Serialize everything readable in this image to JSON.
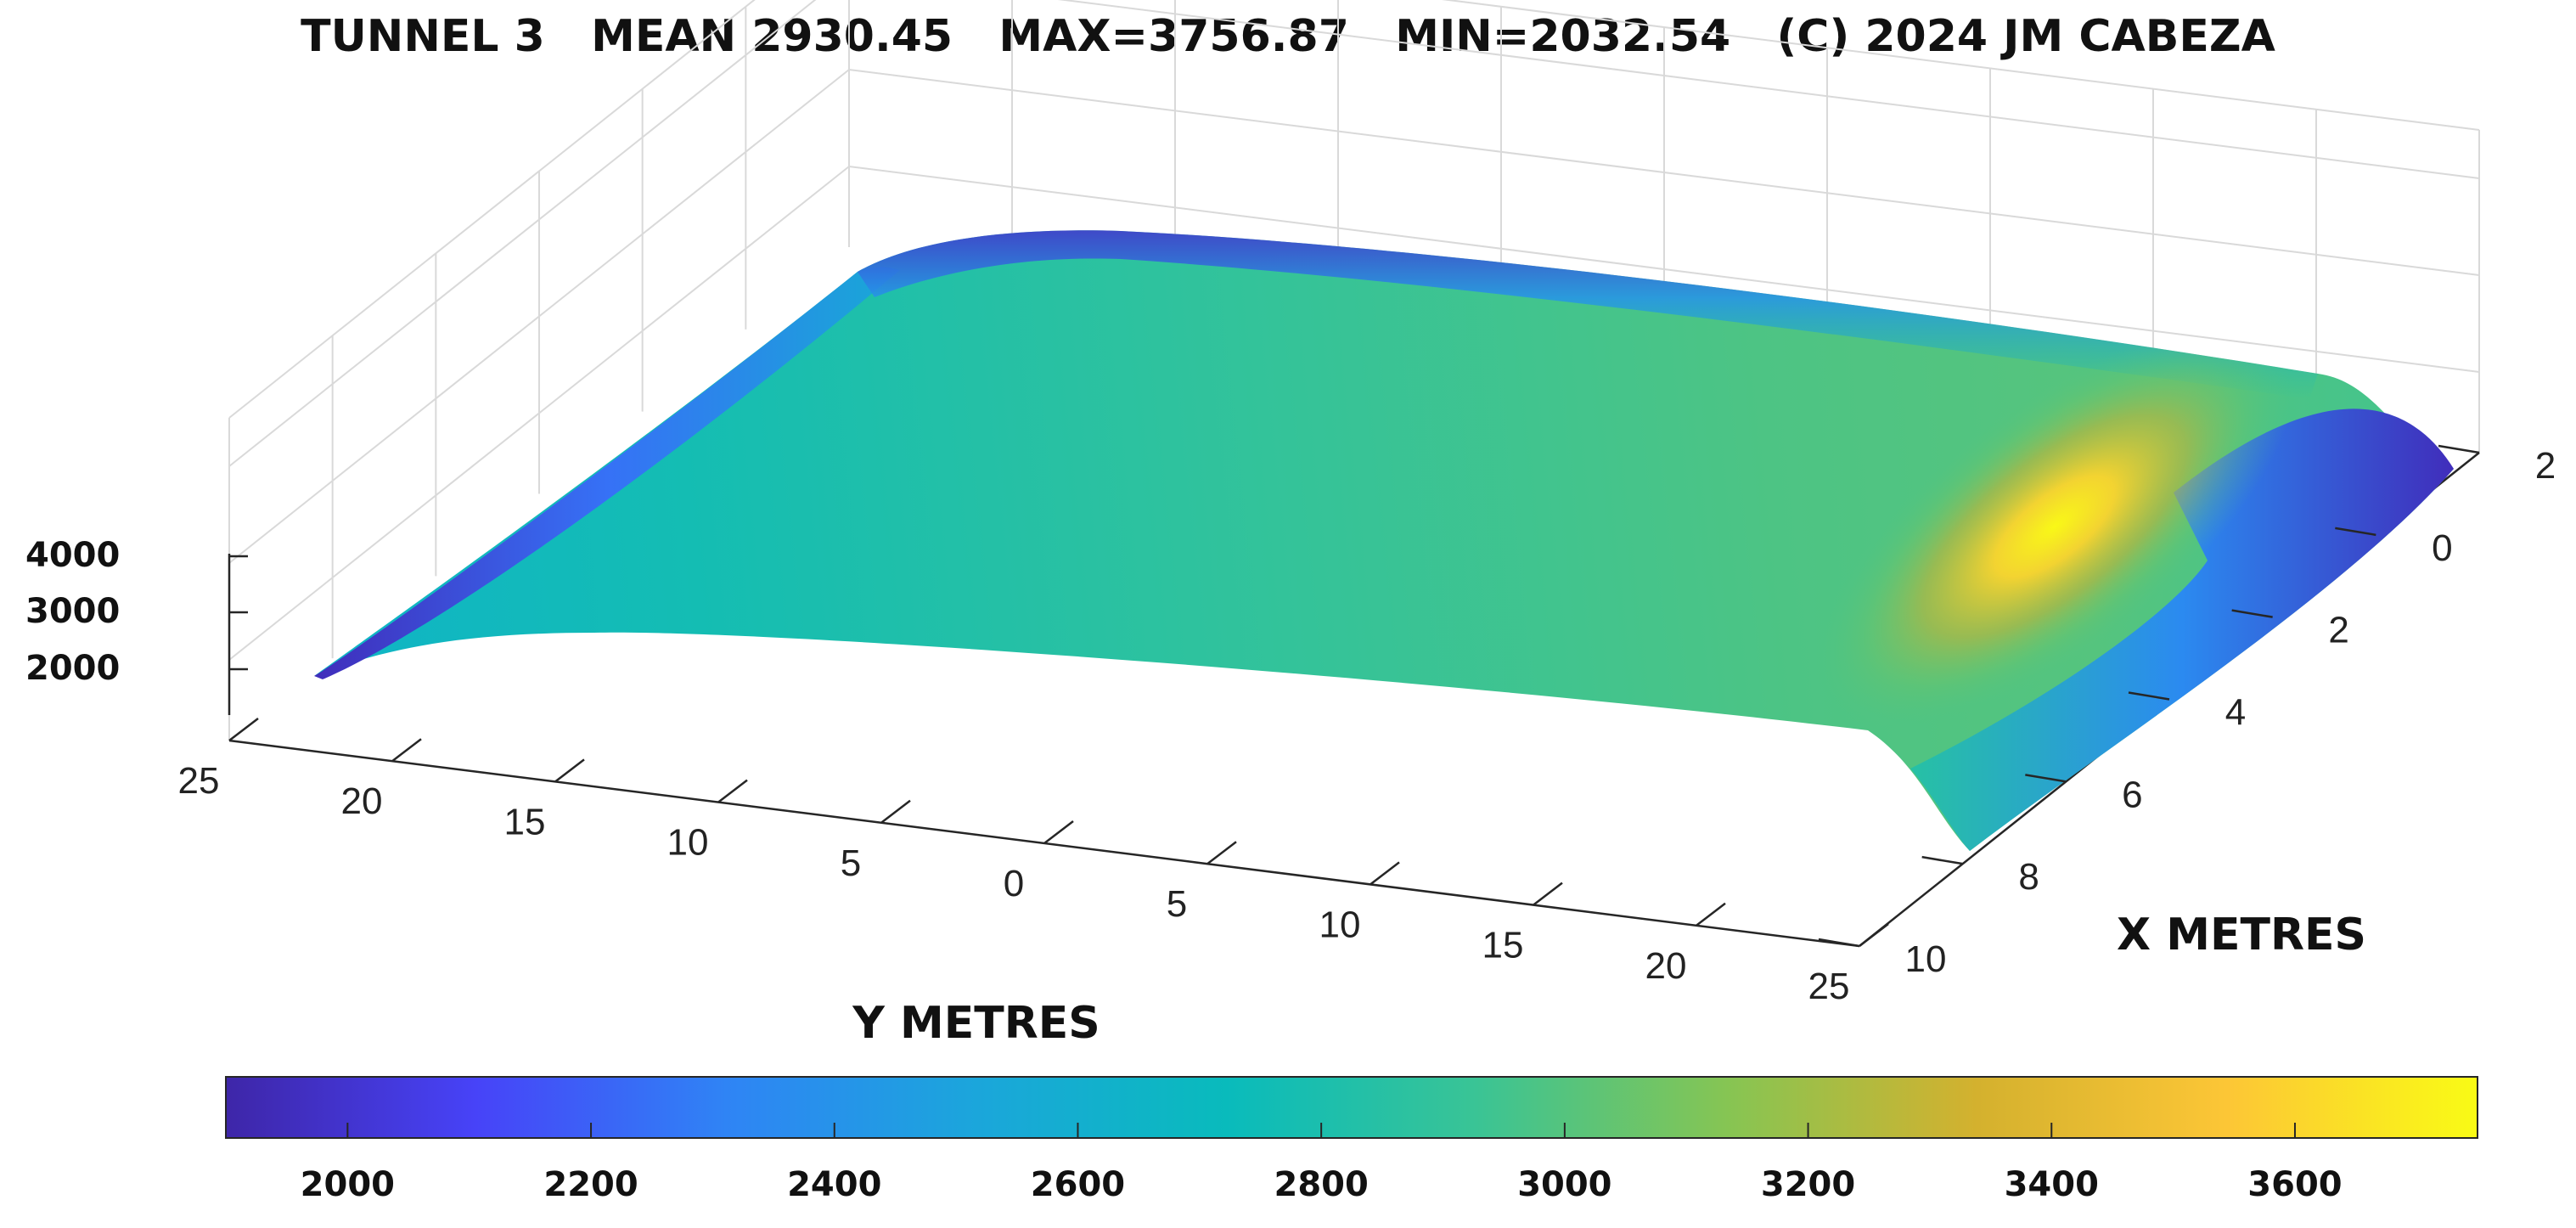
{
  "chart_data": {
    "type": "surface",
    "title": "TUNNEL 3   MEAN 2930.45   MAX=3756.87   MIN=2032.54   (C) 2024 JM CABEZA",
    "xlabel": "X METRES",
    "ylabel": "Y METRES",
    "x_ticks": [
      -2,
      0,
      2,
      4,
      6,
      8,
      10
    ],
    "x_tick_labels": [
      "2",
      "0",
      "2",
      "4",
      "6",
      "8",
      "10"
    ],
    "y_ticks": [
      -25,
      -20,
      -15,
      -10,
      -5,
      0,
      5,
      10,
      15,
      20,
      25
    ],
    "y_tick_labels": [
      "25",
      "20",
      "15",
      "10",
      "5",
      "0",
      "5",
      "10",
      "15",
      "20",
      "25"
    ],
    "z_ticks": [
      2000,
      3000,
      4000
    ],
    "z_tick_labels": [
      "2000",
      "3000",
      "4000"
    ],
    "xlim": [
      -2,
      10
    ],
    "ylim": [
      -25,
      25
    ],
    "clim": [
      1900,
      3750
    ],
    "colormap": "parula",
    "colormap_stops": [
      "#3e26a8",
      "#4743f8",
      "#2f84f5",
      "#1ba6db",
      "#09bbbc",
      "#3ac495",
      "#86c553",
      "#d4b12e",
      "#fcc636",
      "#f9fb15"
    ],
    "colorbar_ticks": [
      2000,
      2200,
      2400,
      2600,
      2800,
      3000,
      3200,
      3400,
      3600
    ],
    "colorbar_tick_labels": [
      "2000",
      "2200",
      "2400",
      "2600",
      "2800",
      "3000",
      "3200",
      "3400",
      "3600"
    ],
    "stats": {
      "mean": 2930.45,
      "max": 3756.87,
      "min": 2032.54
    },
    "peak_location": {
      "x": 2,
      "y": 25,
      "value": 3756.87
    },
    "grid": true
  }
}
